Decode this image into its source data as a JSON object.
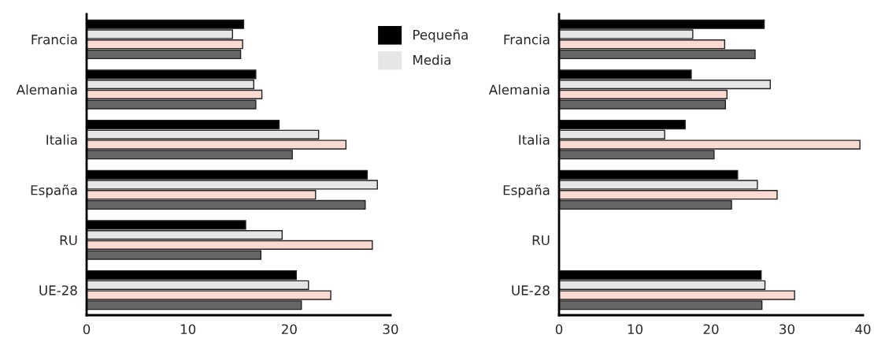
{
  "chart_data": [
    {
      "type": "bar",
      "orientation": "horizontal",
      "categories": [
        "Francia",
        "Alemania",
        "Italia",
        "España",
        "RU",
        "UE-28"
      ],
      "xlim": [
        0,
        30
      ],
      "xticks": [
        0,
        10,
        20,
        30
      ],
      "legend": "top right",
      "grid": false,
      "series": [
        {
          "name": "Pequeña",
          "color": "#000000",
          "values": [
            15.5,
            16.7,
            19.0,
            27.7,
            15.7,
            20.7
          ]
        },
        {
          "name": "Media",
          "color": "#e6e6e6",
          "values": [
            14.4,
            16.5,
            22.9,
            28.7,
            19.3,
            21.9
          ]
        },
        {
          "color": "#f9d9d2",
          "values": [
            15.4,
            17.3,
            25.6,
            22.6,
            28.2,
            24.1
          ]
        },
        {
          "color": "#666666",
          "values": [
            15.2,
            16.7,
            20.3,
            27.5,
            17.2,
            21.2
          ]
        }
      ]
    },
    {
      "type": "bar",
      "orientation": "horizontal",
      "categories": [
        "Francia",
        "Alemania",
        "Italia",
        "España",
        "RU",
        "UE-28"
      ],
      "xlim": [
        0,
        40
      ],
      "xticks": [
        0,
        10,
        20,
        30,
        40
      ],
      "grid": false,
      "series": [
        {
          "color": "#000000",
          "values": [
            27.0,
            17.4,
            16.6,
            23.5,
            null,
            26.6
          ]
        },
        {
          "color": "#e6e6e6",
          "values": [
            17.6,
            27.8,
            13.9,
            26.1,
            null,
            27.1
          ]
        },
        {
          "color": "#f9d9d2",
          "values": [
            21.8,
            22.1,
            39.6,
            28.7,
            null,
            31.0
          ]
        },
        {
          "color": "#666666",
          "values": [
            25.8,
            21.9,
            20.4,
            22.7,
            null,
            26.7
          ]
        }
      ]
    }
  ]
}
